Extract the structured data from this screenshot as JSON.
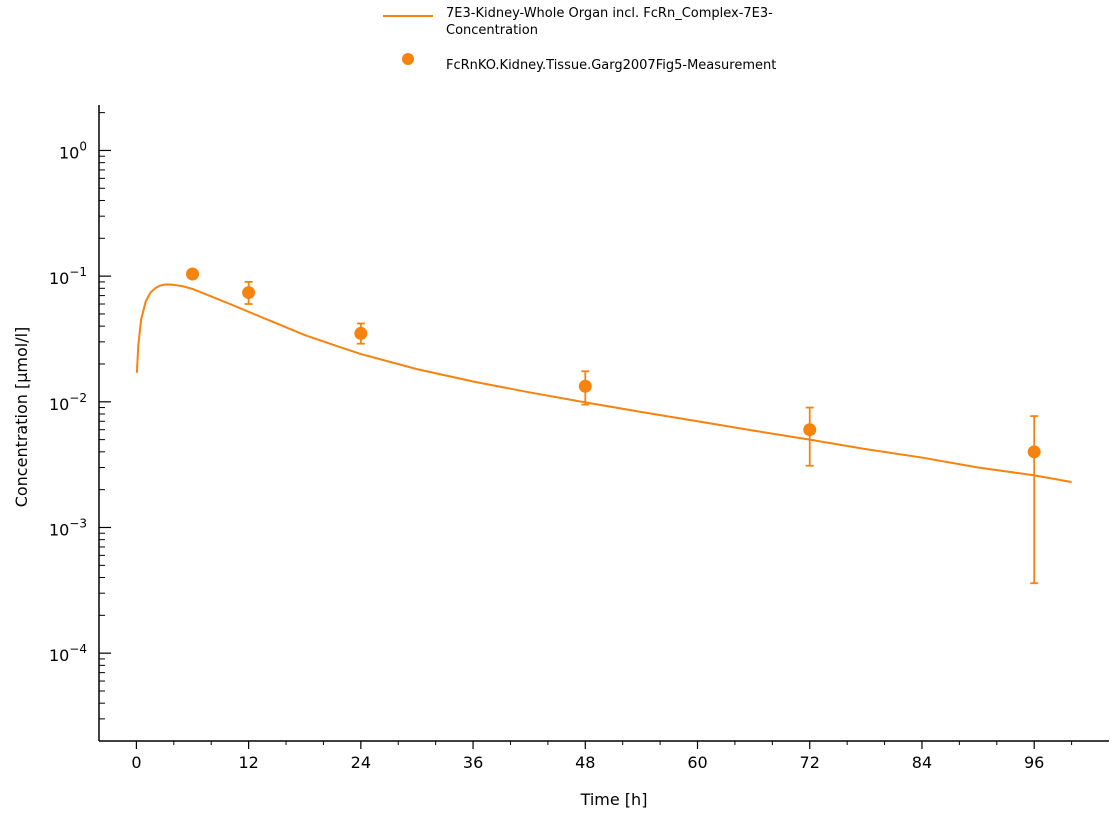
{
  "chart_data": {
    "type": "line",
    "xlabel": "Time [h]",
    "ylabel": "Concentration [µmol/l]",
    "xlim": [
      -4,
      104
    ],
    "ylim": [
      2e-05,
      2.3
    ],
    "yscale": "log",
    "x_ticks": [
      0,
      12,
      24,
      36,
      48,
      60,
      72,
      84,
      96
    ],
    "y_ticks": [
      {
        "value": 0.0001,
        "base": "10",
        "exp": "−4"
      },
      {
        "value": 0.001,
        "base": "10",
        "exp": "−3"
      },
      {
        "value": 0.01,
        "base": "10",
        "exp": "−2"
      },
      {
        "value": 0.1,
        "base": "10",
        "exp": "−1"
      },
      {
        "value": 1,
        "base": "10",
        "exp": "0"
      }
    ],
    "legend_position": "top-center",
    "color": "#f7830f",
    "series": [
      {
        "name": "7E3-Kidney-Whole Organ incl. FcRn_Complex-7E3-Concentration",
        "legend_lines": [
          "7E3-Kidney-Whole Organ incl. FcRn_Complex-7E3-",
          "Concentration"
        ],
        "type": "line",
        "x": [
          0.05,
          0.2,
          0.5,
          1,
          1.5,
          2,
          2.5,
          3,
          3.5,
          4,
          5,
          6,
          8,
          10,
          12,
          15,
          18,
          21,
          24,
          30,
          36,
          42,
          48,
          54,
          60,
          66,
          72,
          78,
          84,
          90,
          96,
          100
        ],
        "y": [
          0.017,
          0.028,
          0.045,
          0.063,
          0.074,
          0.08,
          0.084,
          0.0855,
          0.0858,
          0.0852,
          0.083,
          0.079,
          0.069,
          0.06,
          0.052,
          0.042,
          0.034,
          0.0285,
          0.024,
          0.0182,
          0.0145,
          0.0119,
          0.0099,
          0.0083,
          0.007,
          0.0059,
          0.005,
          0.0042,
          0.0036,
          0.003,
          0.0026,
          0.0023
        ]
      },
      {
        "name": "FcRnKO.Kidney.Tissue.Garg2007Fig5-Measurement",
        "type": "scatter",
        "points": [
          {
            "x": 6,
            "y": 0.104,
            "err_low": null,
            "err_high": null
          },
          {
            "x": 12,
            "y": 0.074,
            "err_low": 0.06,
            "err_high": 0.09
          },
          {
            "x": 24,
            "y": 0.035,
            "err_low": 0.029,
            "err_high": 0.042
          },
          {
            "x": 48,
            "y": 0.0133,
            "err_low": 0.0095,
            "err_high": 0.0175
          },
          {
            "x": 72,
            "y": 0.006,
            "err_low": 0.0031,
            "err_high": 0.009
          },
          {
            "x": 96,
            "y": 0.004,
            "err_low": 0.00036,
            "err_high": 0.0077
          }
        ]
      }
    ]
  }
}
